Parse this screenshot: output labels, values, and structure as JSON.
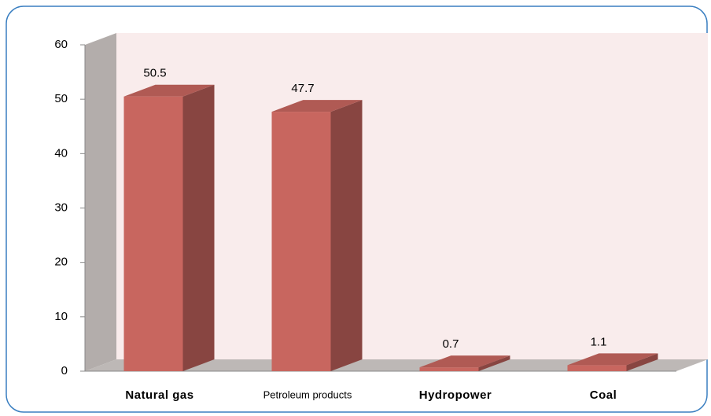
{
  "chart_data": {
    "type": "bar3d",
    "categories": [
      "Natural gas",
      "Petroleum products",
      "Hydropower",
      "Coal"
    ],
    "values": [
      50.5,
      47.7,
      0.7,
      1.1
    ],
    "color": "#c8665f",
    "ylim": [
      0,
      60
    ],
    "yticks": [
      0,
      10,
      20,
      30,
      40,
      50,
      60
    ]
  }
}
